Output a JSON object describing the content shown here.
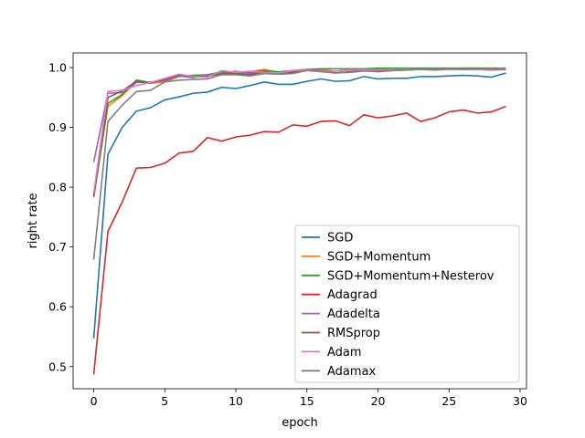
{
  "chart_data": {
    "type": "line",
    "title": "",
    "xlabel": "epoch",
    "ylabel": "right rate",
    "xlim": [
      -1.45,
      30.45
    ],
    "ylim": [
      0.463,
      1.0245
    ],
    "xticks": [
      0,
      5,
      10,
      15,
      20,
      25,
      30
    ],
    "xtick_labels": [
      "0",
      "5",
      "10",
      "15",
      "20",
      "25",
      "30"
    ],
    "yticks": [
      0.5,
      0.6,
      0.7,
      0.8,
      0.9,
      1.0
    ],
    "ytick_labels": [
      "0.5",
      "0.6",
      "0.7",
      "0.8",
      "0.9",
      "1.0"
    ],
    "grid": false,
    "legend_position": "lower-right",
    "x": [
      0,
      1,
      2,
      3,
      4,
      5,
      6,
      7,
      8,
      9,
      10,
      11,
      12,
      13,
      14,
      15,
      16,
      17,
      18,
      19,
      20,
      21,
      22,
      23,
      24,
      25,
      26,
      27,
      28,
      29
    ],
    "series": [
      {
        "name": "SGD",
        "color": "#1f77b4",
        "values": [
          0.547,
          0.855,
          0.9,
          0.927,
          0.933,
          0.946,
          0.951,
          0.957,
          0.959,
          0.967,
          0.965,
          0.97,
          0.976,
          0.972,
          0.972,
          0.977,
          0.981,
          0.977,
          0.978,
          0.985,
          0.981,
          0.982,
          0.982,
          0.985,
          0.985,
          0.986,
          0.987,
          0.986,
          0.984,
          0.991
        ]
      },
      {
        "name": "SGD+Momentum",
        "color": "#ff7f0e",
        "values": [
          0.785,
          0.935,
          0.953,
          0.976,
          0.974,
          0.976,
          0.985,
          0.987,
          0.986,
          0.994,
          0.99,
          0.993,
          0.997,
          0.992,
          0.994,
          0.996,
          0.997,
          0.994,
          0.996,
          0.996,
          0.995,
          0.998,
          0.998,
          0.999,
          0.998,
          0.998,
          0.999,
          0.999,
          0.998,
          0.999
        ]
      },
      {
        "name": "SGD+Momentum+Nesterov",
        "color": "#2ca02c",
        "values": [
          0.783,
          0.94,
          0.955,
          0.979,
          0.975,
          0.98,
          0.985,
          0.987,
          0.988,
          0.993,
          0.991,
          0.992,
          0.995,
          0.993,
          0.995,
          0.997,
          0.998,
          0.998,
          0.998,
          0.998,
          0.999,
          0.999,
          0.999,
          0.999,
          0.999,
          0.999,
          0.999,
          0.999,
          0.999,
          0.999
        ]
      },
      {
        "name": "Adagrad",
        "color": "#d62728",
        "values": [
          0.487,
          0.726,
          0.775,
          0.832,
          0.833,
          0.84,
          0.857,
          0.86,
          0.883,
          0.877,
          0.884,
          0.887,
          0.893,
          0.892,
          0.904,
          0.902,
          0.91,
          0.911,
          0.903,
          0.921,
          0.916,
          0.919,
          0.924,
          0.91,
          0.916,
          0.926,
          0.929,
          0.924,
          0.926,
          0.935
        ]
      },
      {
        "name": "Adadelta",
        "color": "#9467bd",
        "values": [
          0.842,
          0.957,
          0.958,
          0.975,
          0.976,
          0.978,
          0.986,
          0.983,
          0.988,
          0.99,
          0.994,
          0.99,
          0.992,
          0.991,
          0.993,
          0.996,
          0.995,
          0.994,
          0.996,
          0.997,
          0.997,
          0.997,
          0.998,
          0.998,
          0.998,
          0.998,
          0.998,
          0.998,
          0.998,
          0.998
        ]
      },
      {
        "name": "RMSprop",
        "color": "#8c564b",
        "values": [
          0.784,
          0.95,
          0.961,
          0.977,
          0.974,
          0.98,
          0.988,
          0.985,
          0.985,
          0.99,
          0.99,
          0.988,
          0.993,
          0.99,
          0.992,
          0.996,
          0.994,
          0.991,
          0.993,
          0.995,
          0.993,
          0.995,
          0.996,
          0.997,
          0.996,
          0.997,
          0.997,
          0.997,
          0.996,
          0.997
        ]
      },
      {
        "name": "Adam",
        "color": "#e377c2",
        "values": [
          0.79,
          0.96,
          0.962,
          0.97,
          0.975,
          0.982,
          0.989,
          0.985,
          0.984,
          0.995,
          0.992,
          0.994,
          0.992,
          0.991,
          0.995,
          0.996,
          0.994,
          0.994,
          0.996,
          0.996,
          0.996,
          0.997,
          0.997,
          0.997,
          0.997,
          0.997,
          0.998,
          0.997,
          0.997,
          0.998
        ]
      },
      {
        "name": "Adamax",
        "color": "#7f7f7f",
        "values": [
          0.679,
          0.91,
          0.937,
          0.96,
          0.962,
          0.976,
          0.979,
          0.98,
          0.981,
          0.988,
          0.988,
          0.986,
          0.99,
          0.989,
          0.99,
          0.995,
          0.993,
          0.991,
          0.992,
          0.994,
          0.994,
          0.995,
          0.996,
          0.997,
          0.997,
          0.998,
          0.998,
          0.998,
          0.998,
          0.999
        ]
      }
    ]
  }
}
